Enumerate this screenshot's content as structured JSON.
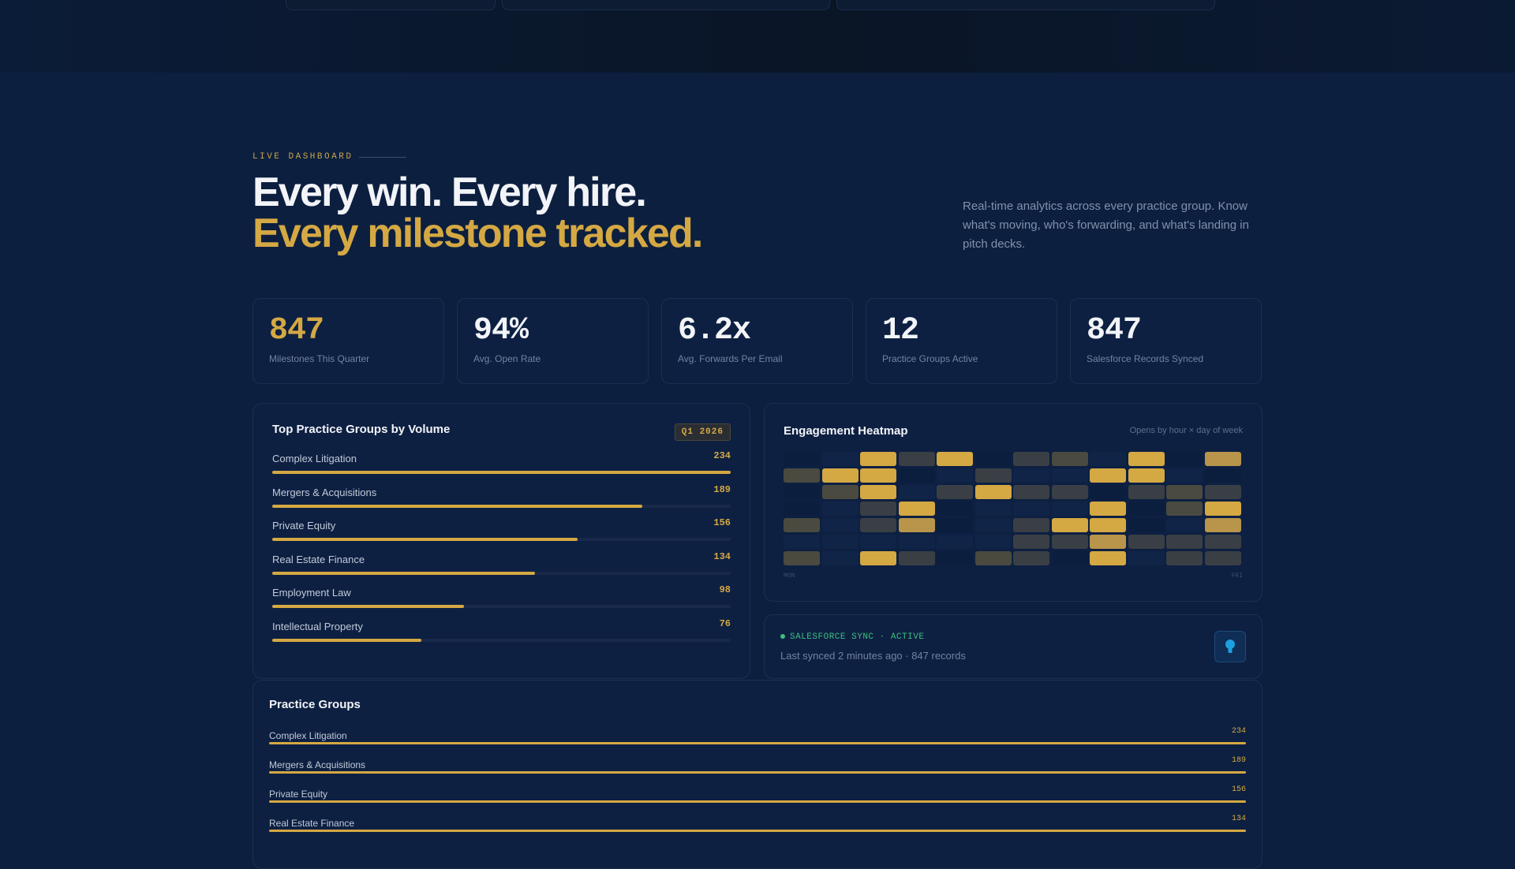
{
  "hero": {
    "eyebrow": "LIVE DASHBOARD",
    "headline_line1": "Every win. Every hire.",
    "headline_line2": "Every milestone tracked.",
    "lede": "Real-time analytics across every practice group. Know what's moving, who's forwarding, and what's landing in pitch decks."
  },
  "stats": [
    {
      "value": "847",
      "label": "Milestones This Quarter",
      "accent": true
    },
    {
      "value": "94%",
      "label": "Avg. Open Rate"
    },
    {
      "value": "6.2x",
      "label": "Avg. Forwards Per Email"
    },
    {
      "value": "12",
      "label": "Practice Groups Active"
    },
    {
      "value": "847",
      "label": "Salesforce Records Synced"
    }
  ],
  "top_groups": {
    "title": "Top Practice Groups by Volume",
    "badge": "Q1 2026",
    "max": 234,
    "items": [
      {
        "name": "Complex Litigation",
        "count": 234
      },
      {
        "name": "Mergers & Acquisitions",
        "count": 189
      },
      {
        "name": "Private Equity",
        "count": 156
      },
      {
        "name": "Real Estate Finance",
        "count": 134
      },
      {
        "name": "Employment Law",
        "count": 98
      },
      {
        "name": "Intellectual Property",
        "count": 76
      }
    ]
  },
  "heatmap": {
    "title": "Engagement Heatmap",
    "subtitle": "Opens by hour × day of week",
    "start_label": "MON",
    "end_label": "FRI",
    "levels": [
      [
        0,
        1,
        5,
        2,
        5,
        0,
        2,
        3,
        1,
        5,
        0,
        4
      ],
      [
        3,
        5,
        5,
        0,
        1,
        2,
        1,
        1,
        5,
        5,
        1,
        0
      ],
      [
        0,
        3,
        5,
        1,
        2,
        5,
        2,
        2,
        0,
        2,
        3,
        2
      ],
      [
        0,
        1,
        2,
        5,
        0,
        1,
        1,
        1,
        5,
        0,
        3,
        5
      ],
      [
        3,
        1,
        2,
        4,
        0,
        1,
        2,
        5,
        5,
        0,
        1,
        4
      ],
      [
        1,
        1,
        1,
        1,
        1,
        1,
        2,
        2,
        4,
        2,
        2,
        2
      ],
      [
        3,
        1,
        5,
        2,
        0,
        3,
        2,
        0,
        5,
        1,
        2,
        2
      ]
    ],
    "colors": [
      "#0c1e3e",
      "#102447",
      "#3a3f45",
      "#4a4a40",
      "#b8954a",
      "#d4a843"
    ]
  },
  "sync": {
    "status": "SALESFORCE SYNC · ACTIVE",
    "detail": "Last synced 2 minutes ago · 847 records",
    "icon": "salesforce-cloud-icon"
  },
  "practice_groups": {
    "title": "Practice Groups",
    "max": 234,
    "items": [
      {
        "name": "Complex Litigation",
        "count": 234
      },
      {
        "name": "Mergers & Acquisitions",
        "count": 189
      },
      {
        "name": "Private Equity",
        "count": 156
      },
      {
        "name": "Real Estate Finance",
        "count": 134
      }
    ]
  },
  "colors": {
    "accent": "#d4a843",
    "background": "#0c1f3f",
    "success": "#3fbf7f"
  }
}
